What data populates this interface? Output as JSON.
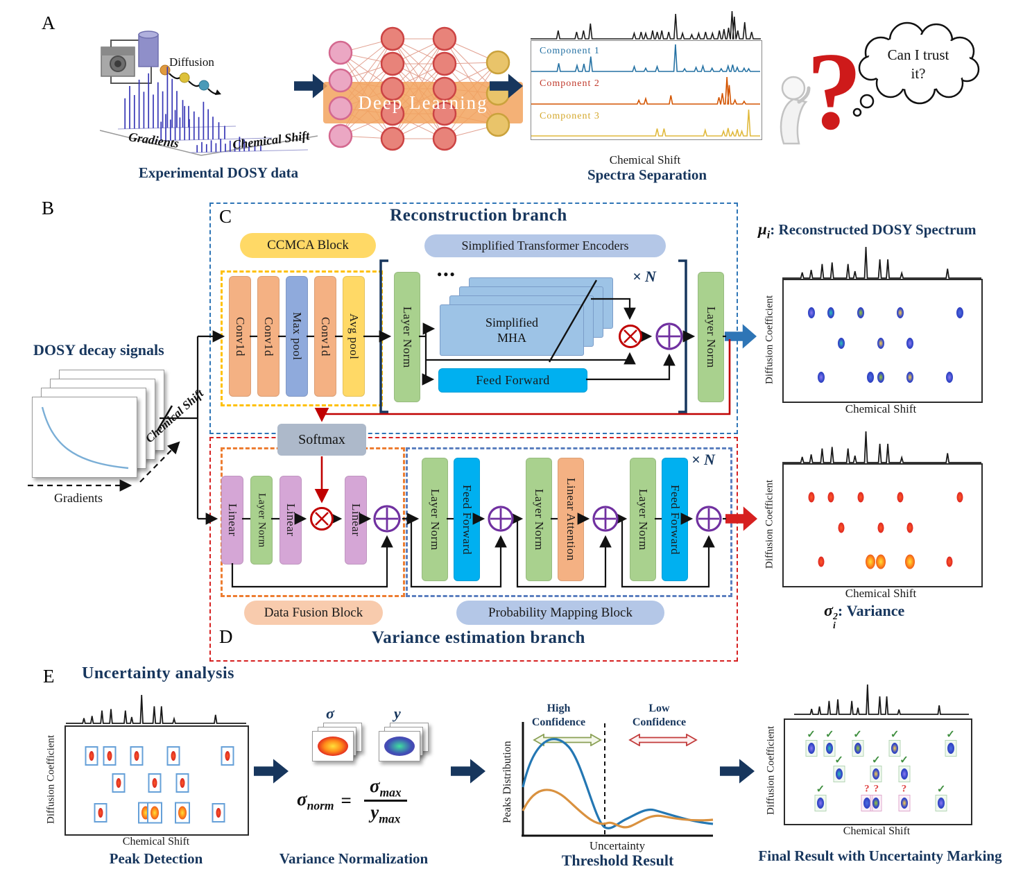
{
  "colors": {
    "navy": "#17365d",
    "recon_border": "#2e75b6",
    "var_border": "#d62020",
    "blue_arrow": "#2e75b6",
    "red_arrow": "#d62020",
    "comp1": "#2471a3",
    "comp2": "#c0392b",
    "comp3": "#d4a72b"
  },
  "common": {
    "layer_norm": "Layer Norm",
    "feed_forward": "Feed Forward",
    "linear": "Linear",
    "conv1d": "Conv1d",
    "chemical_shift": "Chemical Shift",
    "diffusion_coefficient": "Diffusion Coefficient",
    "repeat": "× N"
  },
  "panelA": {
    "label": "A",
    "experimental": {
      "diffusion": "Diffusion",
      "gradients": "Gradients",
      "chemical_shift": "Chemical Shift",
      "caption": "Experimental DOSY data"
    },
    "deep_learning": "Deep Learning",
    "separation": {
      "components": [
        "Component 1",
        "Component 2",
        "Component 3"
      ],
      "xlabel": "Chemical Shift",
      "caption": "Spectra Separation"
    },
    "thought_bubble": "Can I trust it?",
    "question_mark": "?"
  },
  "panelB": {
    "label": "B",
    "title": "DOSY decay signals",
    "gradients": "Gradients",
    "chemical_shift": "Chemical Shift"
  },
  "panelC": {
    "label": "C",
    "title": "Reconstruction branch",
    "ccmca_label": "CCMCA Block",
    "max_pool": "Max pool",
    "avg_pool": "Avg pool",
    "encoders_label": "Simplified Transformer Encoders",
    "mha_line1": "Simplified",
    "mha_line2": "MHA",
    "dots": "●●●"
  },
  "panelD": {
    "label": "D",
    "title": "Variance estimation branch",
    "softmax": "Softmax",
    "linear_attention": "Linear Attention",
    "fusion_label": "Data Fusion Block",
    "mapping_label": "Probability Mapping Block"
  },
  "outputs": {
    "mu_sym": "μ",
    "mu_sub": "i",
    "mu_caption": ": Reconstructed DOSY Spectrum",
    "sigma_sym": "σ",
    "sigma_sup": "2",
    "sigma_sub": "i",
    "sigma_caption": ": Variance"
  },
  "panelE": {
    "label": "E",
    "title": "Uncertainty analysis",
    "peak_detection_caption": "Peak Detection",
    "variance_norm": {
      "sigma": "σ",
      "y": "y",
      "lhs_base": "σ",
      "lhs_sub": "norm",
      "eq": "=",
      "num_base": "σ",
      "num_sub": "max",
      "den_base": "y",
      "den_sub": "max",
      "caption": "Variance Normalization"
    },
    "threshold": {
      "high": "High Confidence",
      "low": "Low Confidence",
      "ylabel": "Peaks Distribution",
      "xlabel": "Uncertainty",
      "caption": "Threshold Result"
    },
    "final_caption": "Final Result with Uncertainty Marking"
  },
  "dosy_map": {
    "marks": {
      "ok": "✓",
      "uncertain": "?"
    },
    "rows": [
      {
        "y": 0.27,
        "peaks": [
          {
            "x": 0.14,
            "c": "violet"
          },
          {
            "x": 0.24,
            "c": "teal"
          },
          {
            "x": 0.39,
            "c": "green"
          },
          {
            "x": 0.59,
            "c": "yellow"
          },
          {
            "x": 0.89,
            "c": "blue"
          }
        ]
      },
      {
        "y": 0.52,
        "peaks": [
          {
            "x": 0.29,
            "c": "teal"
          },
          {
            "x": 0.49,
            "c": "yellow"
          },
          {
            "x": 0.64,
            "c": "violet"
          }
        ]
      },
      {
        "y": 0.8,
        "peaks": [
          {
            "x": 0.19,
            "c": "violet"
          },
          {
            "x": 0.44,
            "c": "blue",
            "hot": true,
            "uncertain": true
          },
          {
            "x": 0.49,
            "c": "green",
            "hot": true,
            "uncertain": true
          },
          {
            "x": 0.64,
            "c": "yellow",
            "hot": true,
            "uncertain": true
          },
          {
            "x": 0.84,
            "c": "violet"
          }
        ]
      }
    ]
  }
}
